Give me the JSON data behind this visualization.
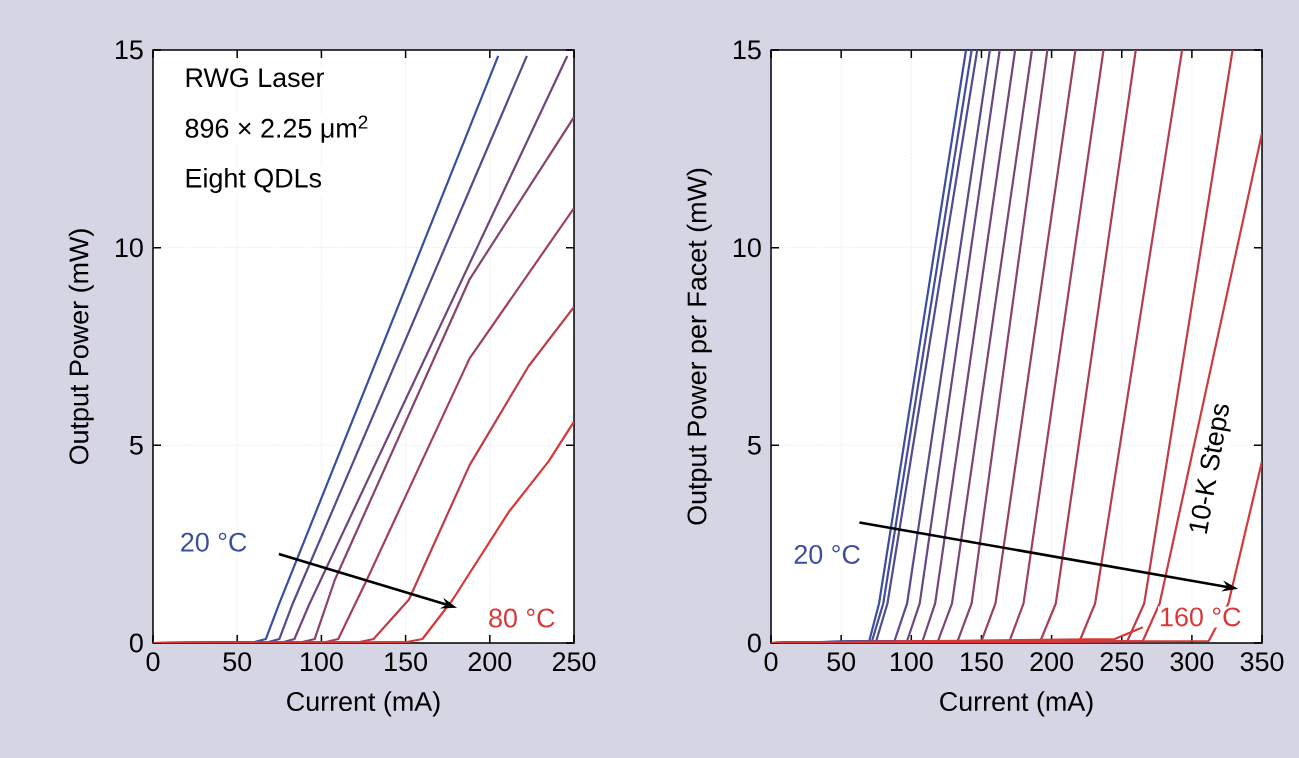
{
  "chart_data": [
    {
      "type": "line",
      "xlabel": "Current (mA)",
      "ylabel": "Output Power (mW)",
      "xlim": [
        0,
        250
      ],
      "ylim": [
        0,
        15
      ],
      "xticks": [
        0,
        50,
        100,
        150,
        200,
        250
      ],
      "yticks": [
        0,
        5,
        10,
        15
      ],
      "grid": true,
      "annotations": [
        "RWG Laser",
        "896 × 2.25 μm$^{2}$",
        "Eight QDLs",
        "20 °C",
        "80 °C"
      ],
      "series": [
        {
          "color": "#3b4ea0",
          "x": [
            0,
            60,
            67,
            75,
            205
          ],
          "values": [
            0,
            0.02,
            0.1,
            1,
            14.85
          ]
        },
        {
          "color": "#554a8f",
          "x": [
            0,
            68,
            75,
            83,
            222
          ],
          "values": [
            0,
            0.02,
            0.1,
            1,
            14.85
          ]
        },
        {
          "color": "#6f477d",
          "x": [
            0,
            77,
            84,
            93,
            246
          ],
          "values": [
            0,
            0.02,
            0.1,
            1,
            14.85
          ]
        },
        {
          "color": "#8a436c",
          "x": [
            0,
            88,
            96,
            108,
            188,
            250
          ],
          "values": [
            0,
            0.02,
            0.1,
            1.6,
            9.2,
            13.3
          ]
        },
        {
          "color": "#a43f5b",
          "x": [
            0,
            102,
            110,
            127,
            188,
            250
          ],
          "values": [
            0,
            0.02,
            0.1,
            1.6,
            7.2,
            11
          ]
        },
        {
          "color": "#be3c49",
          "x": [
            0,
            122,
            131,
            152,
            188,
            223,
            250
          ],
          "values": [
            0,
            0.02,
            0.1,
            1.1,
            4.5,
            7.0,
            8.5
          ]
        },
        {
          "color": "#d83838",
          "x": [
            0,
            150,
            160,
            178,
            211,
            235,
            250
          ],
          "values": [
            0,
            0.02,
            0.1,
            1.1,
            3.3,
            4.6,
            5.6
          ]
        }
      ]
    },
    {
      "type": "line",
      "xlabel": "Current (mA)",
      "ylabel": "Output Power per Facet (mW)",
      "xlim": [
        0,
        350
      ],
      "ylim": [
        0,
        15
      ],
      "xticks": [
        0,
        50,
        100,
        150,
        200,
        250,
        300,
        350
      ],
      "yticks": [
        0,
        5,
        10,
        15
      ],
      "grid": true,
      "annotations": [
        "20 °C",
        "160 °C",
        "10-K Steps"
      ],
      "series": [
        {
          "color": "#3b4ea0",
          "x": [
            0,
            70,
            77,
            139
          ],
          "values": [
            0,
            0.05,
            1,
            15
          ]
        },
        {
          "color": "#464c99",
          "x": [
            0,
            72,
            80,
            143
          ],
          "values": [
            0,
            0.05,
            1,
            15
          ]
        },
        {
          "color": "#514b91",
          "x": [
            0,
            75,
            83,
            147
          ],
          "values": [
            0,
            0.05,
            1,
            15
          ]
        },
        {
          "color": "#5d498a",
          "x": [
            0,
            88,
            97,
            156
          ],
          "values": [
            0,
            0.05,
            1,
            15
          ]
        },
        {
          "color": "#684882",
          "x": [
            0,
            97,
            106,
            163
          ],
          "values": [
            0,
            0.05,
            1,
            15
          ]
        },
        {
          "color": "#73467b",
          "x": [
            0,
            108,
            117,
            174
          ],
          "values": [
            0,
            0.05,
            1,
            15
          ]
        },
        {
          "color": "#7e4573",
          "x": [
            0,
            119,
            129,
            186
          ],
          "values": [
            0,
            0.05,
            1,
            15
          ]
        },
        {
          "color": "#8a436c",
          "x": [
            0,
            133,
            143,
            197
          ],
          "values": [
            0,
            0.05,
            1,
            15
          ]
        },
        {
          "color": "#954165",
          "x": [
            0,
            150,
            160,
            217
          ],
          "values": [
            0,
            0.05,
            1,
            15
          ]
        },
        {
          "color": "#a0405d",
          "x": [
            0,
            170,
            180,
            237
          ],
          "values": [
            0,
            0.05,
            1,
            15
          ]
        },
        {
          "color": "#ab3e56",
          "x": [
            0,
            192,
            203,
            260
          ],
          "values": [
            0,
            0.05,
            1,
            15
          ]
        },
        {
          "color": "#b63d4e",
          "x": [
            0,
            220,
            231,
            293
          ],
          "values": [
            0,
            0.05,
            1,
            15
          ]
        },
        {
          "color": "#c23b47",
          "x": [
            0,
            254,
            266,
            329
          ],
          "values": [
            0,
            0.05,
            1,
            15
          ]
        },
        {
          "color": "#cd3a3f",
          "x": [
            0,
            265,
            277,
            350
          ],
          "values": [
            0,
            0.05,
            1,
            12.9
          ]
        },
        {
          "color": "#d83838",
          "x": [
            0,
            312,
            326,
            350
          ],
          "values": [
            0,
            0.05,
            1,
            4.6
          ]
        },
        {
          "color": "#d83838",
          "x": [
            0,
            245,
            265
          ],
          "values": [
            0,
            0.1,
            0.4
          ]
        }
      ]
    }
  ]
}
